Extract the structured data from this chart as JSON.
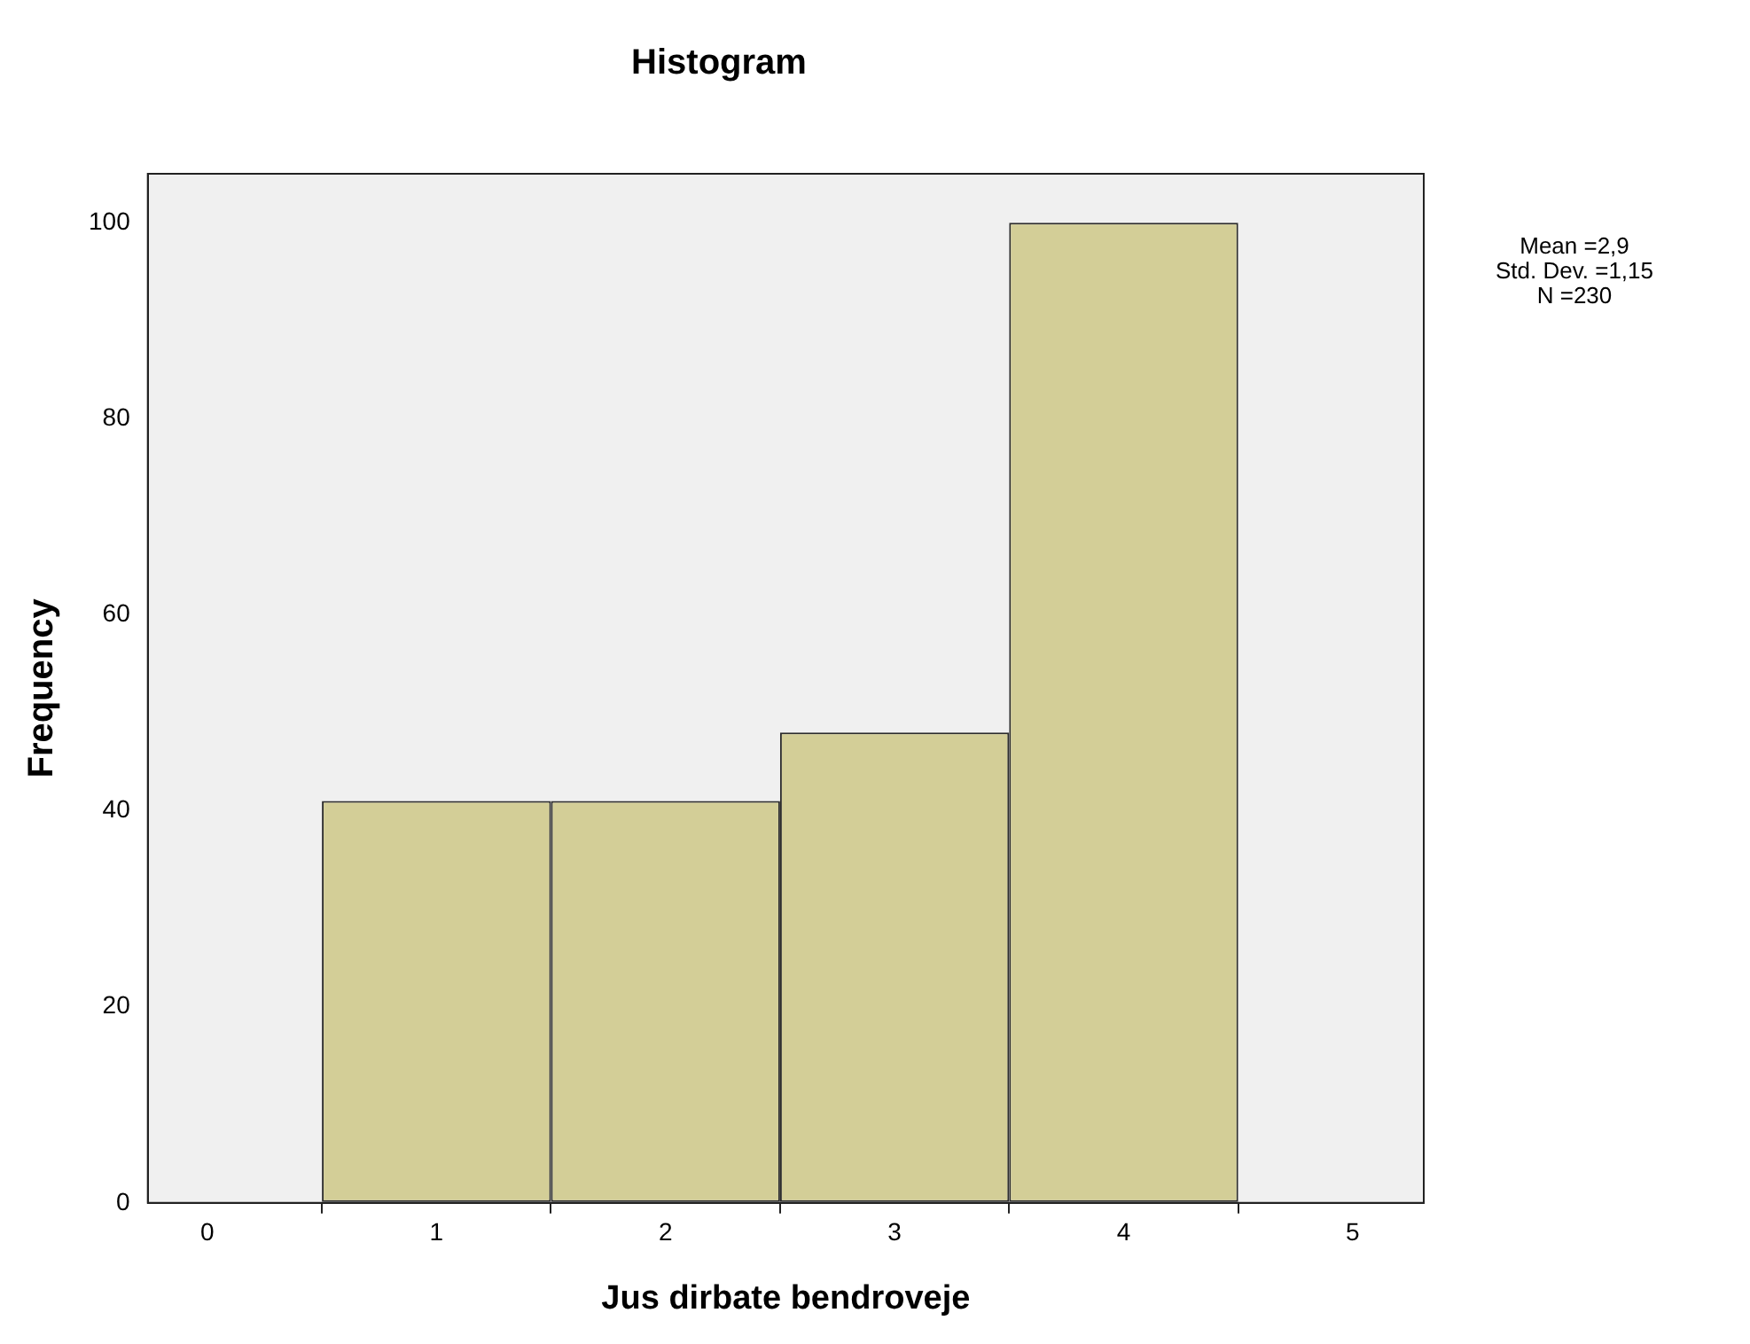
{
  "chart_data": {
    "type": "histogram",
    "title": "Histogram",
    "xlabel": "Jus dirbate bendroveje",
    "ylabel": "Frequency",
    "bins": [
      0.5,
      1.5,
      2.5,
      3.5,
      4.5
    ],
    "values": [
      41,
      41,
      48,
      100
    ],
    "color": "#d3ce97",
    "xlim": [
      -0.26,
      5.31
    ],
    "xticks": [
      0,
      1,
      2,
      3,
      4,
      5
    ],
    "ylim": [
      0,
      105
    ],
    "yticks": [
      0,
      20,
      40,
      60,
      80,
      100
    ],
    "annotations": [
      "Mean =2,9",
      "Std. Dev. =1,15",
      "N =230"
    ]
  }
}
